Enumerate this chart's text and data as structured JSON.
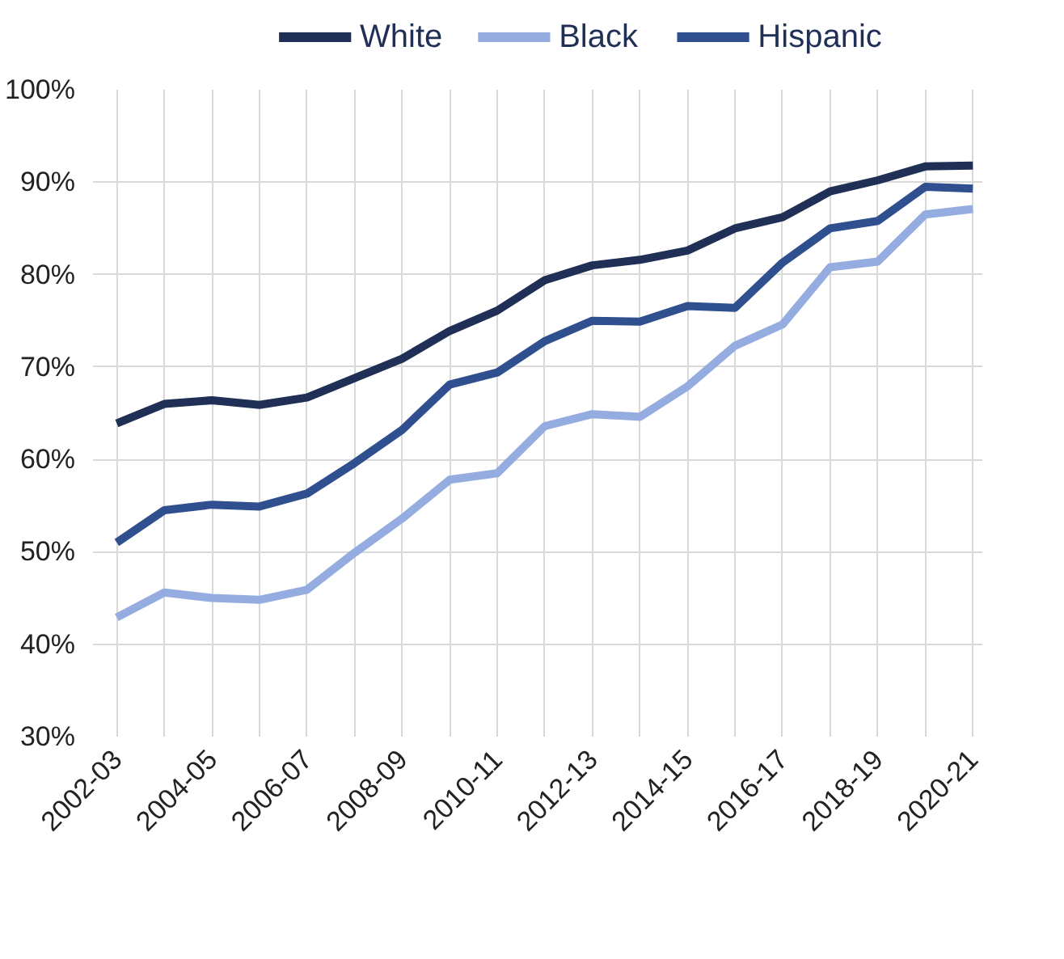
{
  "chart_data": {
    "type": "line",
    "categories": [
      "2002-03",
      null,
      "2004-05",
      null,
      "2006-07",
      null,
      "2008-09",
      null,
      "2010-11",
      null,
      "2012-13",
      null,
      "2014-15",
      null,
      "2016-17",
      null,
      "2018-19",
      null,
      "2020-21"
    ],
    "series": [
      {
        "name": "White",
        "color": "#1f2f55",
        "values": [
          63.9,
          66.0,
          66.4,
          65.9,
          66.7,
          68.8,
          70.9,
          73.9,
          76.1,
          79.4,
          81.0,
          81.6,
          82.6,
          85.0,
          86.2,
          89.0,
          90.2,
          91.7,
          91.8
        ]
      },
      {
        "name": "Black",
        "color": "#94acdf",
        "values": [
          42.9,
          45.6,
          45.0,
          44.8,
          45.9,
          49.9,
          53.6,
          57.8,
          58.5,
          63.6,
          64.9,
          64.6,
          67.9,
          72.3,
          74.6,
          80.8,
          81.4,
          86.5,
          87.1
        ]
      },
      {
        "name": "Hispanic",
        "color": "#2f4f8f",
        "values": [
          51.0,
          54.5,
          55.1,
          54.9,
          56.3,
          59.6,
          63.2,
          68.1,
          69.4,
          72.8,
          75.0,
          74.9,
          76.6,
          76.4,
          81.3,
          85.0,
          85.8,
          89.5,
          89.3
        ]
      }
    ],
    "ylim": [
      30,
      100
    ],
    "yticks": [
      {
        "value": 30,
        "label": "30%"
      },
      {
        "value": 40,
        "label": "40%"
      },
      {
        "value": 50,
        "label": "50%"
      },
      {
        "value": 60,
        "label": "60%"
      },
      {
        "value": 70,
        "label": "70%"
      },
      {
        "value": 80,
        "label": "80%"
      },
      {
        "value": 90,
        "label": "90%"
      },
      {
        "value": 100,
        "label": "100%"
      }
    ],
    "grid": true,
    "legend": "top",
    "marker": "none",
    "line_style": "solid"
  }
}
